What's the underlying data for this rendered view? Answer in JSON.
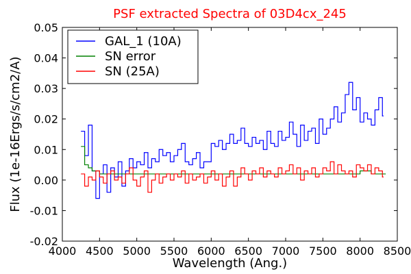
{
  "chart_data": {
    "type": "line",
    "title": "PSF extracted Spectra of 03D4cx_245",
    "title_color": "#ff0000",
    "xlabel": "Wavelength (Ang.)",
    "ylabel": "Flux (1e-16Ergs/s/cm2/A)",
    "xlim": [
      4000,
      8500
    ],
    "ylim": [
      -0.02,
      0.05
    ],
    "xticks": [
      4000,
      4500,
      5000,
      5500,
      6000,
      6500,
      7000,
      7500,
      8000,
      8500
    ],
    "xtick_labels": [
      "4000",
      "4500",
      "5000",
      "5500",
      "6000",
      "6500",
      "7000",
      "7500",
      "8000",
      "8500"
    ],
    "yticks": [
      -0.02,
      -0.01,
      0.0,
      0.01,
      0.02,
      0.03,
      0.04,
      0.05
    ],
    "ytick_labels": [
      "-0.02",
      "-0.01",
      "0.00",
      "0.01",
      "0.02",
      "0.03",
      "0.04",
      "0.05"
    ],
    "grid": false,
    "legend_position": "top-left",
    "step": true,
    "series": [
      {
        "name": "GAL_1 (10A)",
        "color": "#0000ff",
        "x": [
          4250,
          4300,
          4350,
          4400,
          4450,
          4500,
          4550,
          4600,
          4650,
          4700,
          4750,
          4800,
          4850,
          4900,
          4950,
          5000,
          5050,
          5100,
          5150,
          5200,
          5250,
          5300,
          5350,
          5400,
          5450,
          5500,
          5550,
          5600,
          5650,
          5700,
          5750,
          5800,
          5850,
          5900,
          5950,
          6000,
          6050,
          6100,
          6150,
          6200,
          6250,
          6300,
          6350,
          6400,
          6450,
          6500,
          6550,
          6600,
          6650,
          6700,
          6750,
          6800,
          6850,
          6900,
          6950,
          7000,
          7050,
          7100,
          7150,
          7200,
          7250,
          7300,
          7350,
          7400,
          7450,
          7500,
          7550,
          7600,
          7650,
          7700,
          7750,
          7800,
          7850,
          7900,
          7950,
          8000,
          8050,
          8100,
          8150,
          8200,
          8250,
          8300
        ],
        "y": [
          0.016,
          0.008,
          0.018,
          0.003,
          -0.006,
          0.002,
          0.005,
          -0.004,
          0.004,
          0.001,
          0.006,
          -0.002,
          0.003,
          0.007,
          0.004,
          0.006,
          0.005,
          0.009,
          0.004,
          0.007,
          0.006,
          0.01,
          0.008,
          0.009,
          0.006,
          0.008,
          0.01,
          0.012,
          0.006,
          0.005,
          0.007,
          0.009,
          0.004,
          0.006,
          0.006,
          0.012,
          0.011,
          0.013,
          0.01,
          0.012,
          0.015,
          0.012,
          0.013,
          0.017,
          0.012,
          0.011,
          0.014,
          0.012,
          0.013,
          0.01,
          0.016,
          0.012,
          0.011,
          0.016,
          0.013,
          0.014,
          0.019,
          0.015,
          0.011,
          0.018,
          0.013,
          0.016,
          0.017,
          0.012,
          0.02,
          0.015,
          0.017,
          0.02,
          0.024,
          0.019,
          0.022,
          0.028,
          0.032,
          0.023,
          0.027,
          0.019,
          0.022,
          0.02,
          0.018,
          0.023,
          0.027,
          0.021
        ]
      },
      {
        "name": "SN error",
        "color": "#008000",
        "x": [
          4250,
          4300,
          4350,
          4400,
          4450,
          4500,
          4600,
          4700,
          4800,
          4900,
          5000,
          5200,
          5400,
          5600,
          5800,
          6000,
          6200,
          6400,
          6600,
          6800,
          7000,
          7200,
          7400,
          7600,
          7800,
          8000,
          8150,
          8300
        ],
        "y": [
          0.011,
          0.005,
          0.004,
          0.003,
          0.003,
          0.002,
          0.002,
          0.002,
          0.002,
          0.002,
          0.002,
          0.002,
          0.002,
          0.002,
          0.002,
          0.002,
          0.002,
          0.002,
          0.002,
          0.002,
          0.002,
          0.002,
          0.002,
          0.002,
          0.002,
          0.003,
          0.002,
          0.002
        ]
      },
      {
        "name": "SN (25A)",
        "color": "#ff0000",
        "x": [
          4250,
          4300,
          4350,
          4400,
          4450,
          4500,
          4550,
          4600,
          4650,
          4700,
          4750,
          4800,
          4850,
          4900,
          4950,
          5000,
          5050,
          5100,
          5150,
          5200,
          5250,
          5300,
          5350,
          5400,
          5450,
          5500,
          5550,
          5600,
          5650,
          5700,
          5750,
          5800,
          5850,
          5900,
          5950,
          6000,
          6050,
          6100,
          6150,
          6200,
          6250,
          6300,
          6350,
          6400,
          6450,
          6500,
          6550,
          6600,
          6650,
          6700,
          6750,
          6800,
          6850,
          6900,
          6950,
          7000,
          7050,
          7100,
          7150,
          7200,
          7250,
          7300,
          7350,
          7400,
          7450,
          7500,
          7550,
          7600,
          7650,
          7700,
          7750,
          7800,
          7850,
          7900,
          7950,
          8000,
          8050,
          8100,
          8150,
          8200,
          8250,
          8300
        ],
        "y": [
          0.002,
          -0.002,
          0.001,
          0.0,
          0.003,
          0.001,
          -0.001,
          0.002,
          0.003,
          0.0,
          0.001,
          -0.001,
          0.002,
          0.004,
          0.0,
          -0.002,
          0.001,
          0.003,
          -0.004,
          0.0,
          0.002,
          -0.001,
          0.001,
          0.002,
          0.0,
          0.002,
          0.001,
          0.003,
          -0.001,
          0.002,
          0.0,
          0.001,
          0.002,
          -0.001,
          0.001,
          0.003,
          0.0,
          0.002,
          -0.002,
          0.001,
          0.003,
          -0.002,
          0.001,
          0.004,
          0.002,
          0.0,
          0.003,
          0.002,
          0.004,
          0.001,
          0.003,
          0.002,
          0.001,
          0.004,
          0.002,
          0.003,
          0.005,
          0.002,
          0.004,
          0.0,
          0.003,
          0.002,
          0.004,
          0.001,
          0.002,
          0.004,
          0.003,
          0.006,
          0.002,
          0.005,
          0.003,
          0.002,
          0.003,
          0.001,
          0.005,
          0.004,
          0.003,
          0.005,
          0.002,
          0.004,
          0.003,
          0.001
        ]
      }
    ]
  }
}
